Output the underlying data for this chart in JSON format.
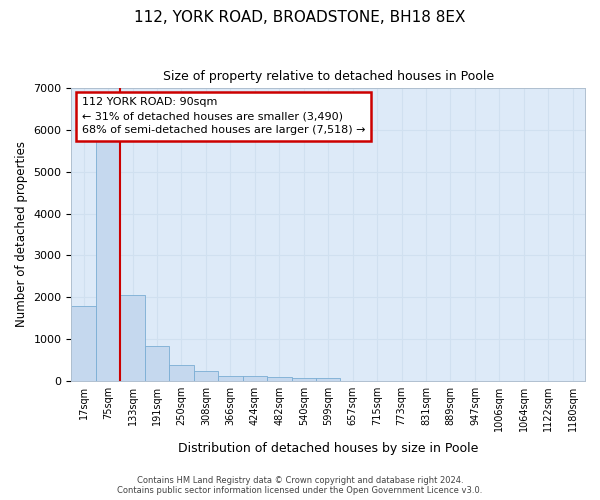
{
  "title": "112, YORK ROAD, BROADSTONE, BH18 8EX",
  "subtitle": "Size of property relative to detached houses in Poole",
  "xlabel": "Distribution of detached houses by size in Poole",
  "ylabel": "Number of detached properties",
  "bar_labels": [
    "17sqm",
    "75sqm",
    "133sqm",
    "191sqm",
    "250sqm",
    "308sqm",
    "366sqm",
    "424sqm",
    "482sqm",
    "540sqm",
    "599sqm",
    "657sqm",
    "715sqm",
    "773sqm",
    "831sqm",
    "889sqm",
    "947sqm",
    "1006sqm",
    "1064sqm",
    "1122sqm",
    "1180sqm"
  ],
  "bar_values": [
    1780,
    5750,
    2060,
    830,
    380,
    240,
    120,
    100,
    80,
    70,
    50,
    0,
    0,
    0,
    0,
    0,
    0,
    0,
    0,
    0,
    0
  ],
  "bar_color": "#c5d8ee",
  "bar_edge_color": "#7aadd4",
  "grid_color": "#d0e0f0",
  "background_color": "#ddeaf8",
  "red_line_x": 1.5,
  "annotation_text": "112 YORK ROAD: 90sqm\n← 31% of detached houses are smaller (3,490)\n68% of semi-detached houses are larger (7,518) →",
  "annotation_box_color": "#ffffff",
  "annotation_border_color": "#cc0000",
  "ylim": [
    0,
    7000
  ],
  "yticks": [
    0,
    1000,
    2000,
    3000,
    4000,
    5000,
    6000,
    7000
  ],
  "footer_line1": "Contains HM Land Registry data © Crown copyright and database right 2024.",
  "footer_line2": "Contains public sector information licensed under the Open Government Licence v3.0."
}
